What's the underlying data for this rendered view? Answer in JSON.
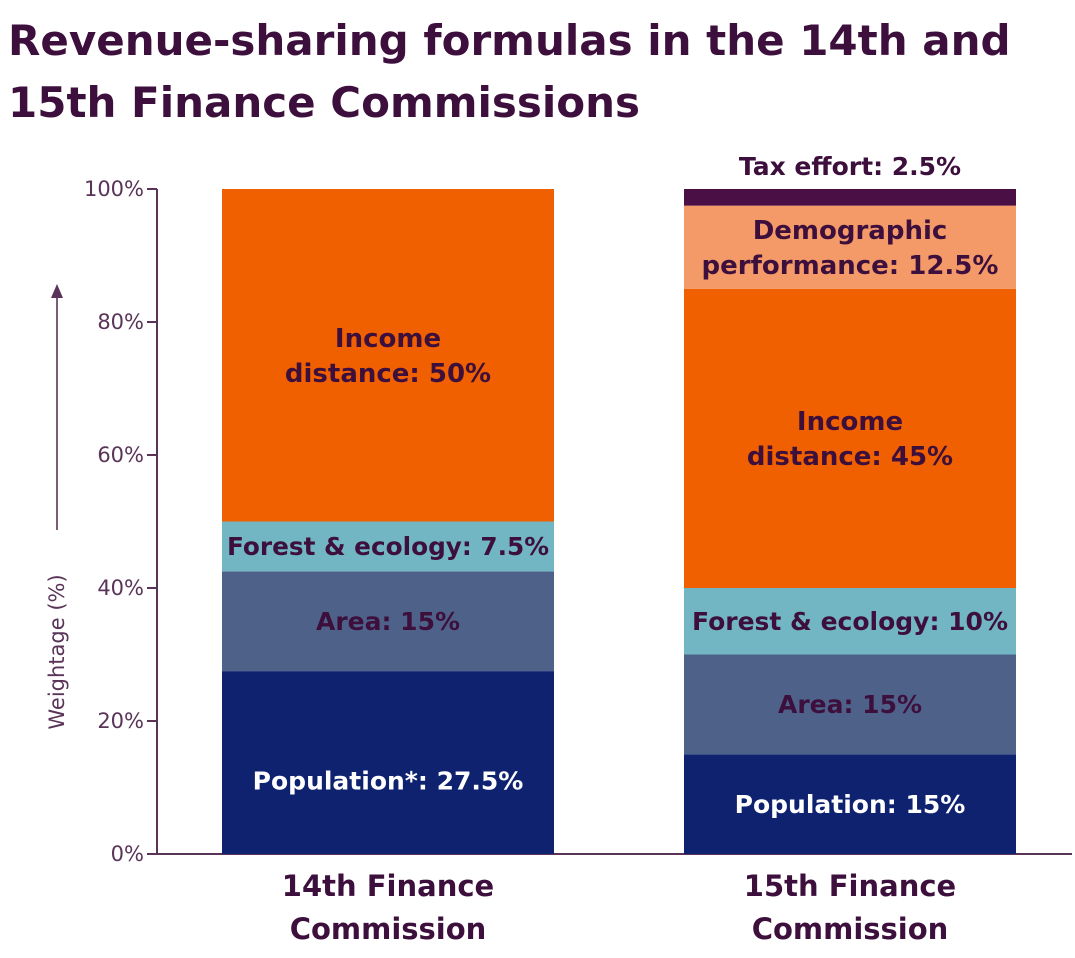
{
  "chart_data": {
    "type": "bar",
    "stacked": true,
    "title": "Revenue-sharing formulas in the 14th and 15th Finance Commissions",
    "title_lines": [
      "Revenue-sharing formulas in the 14th and",
      "15th Finance Commissions"
    ],
    "ylabel": "Weightage (%)",
    "ylim": [
      0,
      100
    ],
    "yticks": [
      0,
      20,
      40,
      60,
      80,
      100
    ],
    "ytick_labels": [
      "0%",
      "20%",
      "40%",
      "60%",
      "80%",
      "100%"
    ],
    "categories": [
      {
        "name": "14th Finance Commission",
        "lines": [
          "14th Finance",
          "Commission"
        ]
      },
      {
        "name": "15th Finance Commission",
        "lines": [
          "15th Finance",
          "Commission"
        ]
      }
    ],
    "series": [
      {
        "name": "Population",
        "color": "#0f2270",
        "text_color": "#ffffff",
        "values": [
          27.5,
          15
        ],
        "labels": [
          [
            "Population*: 27.5%"
          ],
          [
            "Population: 15%"
          ]
        ]
      },
      {
        "name": "Area",
        "color": "#4e6289",
        "text_color": "#3d0f3c",
        "values": [
          15,
          15
        ],
        "labels": [
          [
            "Area: 15%"
          ],
          [
            "Area: 15%"
          ]
        ]
      },
      {
        "name": "Forest & ecology",
        "color": "#72b6c4",
        "text_color": "#3d0f3c",
        "values": [
          7.5,
          10
        ],
        "labels": [
          [
            "Forest & ecology: 7.5%"
          ],
          [
            "Forest & ecology: 10%"
          ]
        ]
      },
      {
        "name": "Income distance",
        "color": "#f06000",
        "text_color": "#3d0f3c",
        "values": [
          50,
          45
        ],
        "labels": [
          [
            "Income",
            "distance: 50%"
          ],
          [
            "Income",
            "distance: 45%"
          ]
        ]
      },
      {
        "name": "Demographic performance",
        "color": "#f49a68",
        "text_color": "#3d0f3c",
        "values": [
          0,
          12.5
        ],
        "labels": [
          [],
          [
            "Demographic",
            "performance: 12.5%"
          ]
        ]
      },
      {
        "name": "Tax effort",
        "color": "#4a0f45",
        "text_color": "#3d0f3c",
        "values": [
          0,
          2.5
        ],
        "labels": [
          [],
          [
            "Tax effort: 2.5%"
          ]
        ]
      }
    ],
    "grid": false,
    "legend": "none"
  },
  "colors": {
    "title": "#3d0f3c",
    "axis": "#5a3458",
    "tick_text": "#5a3458"
  }
}
